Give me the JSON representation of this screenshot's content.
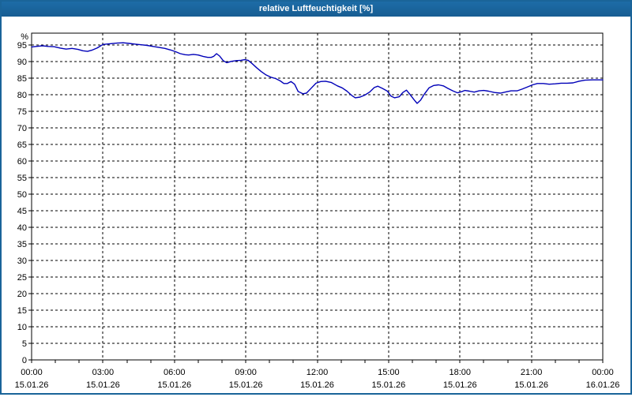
{
  "window": {
    "title": "relative Luftfeuchtigkeit [%]"
  },
  "colors": {
    "titlebar": "#1A6499",
    "window_border": "#1A6499",
    "plot_background": "#FFFFFF",
    "plot_border": "#000000",
    "grid": "#000000",
    "axis_text": "#000000",
    "title_text": "#FFFFFF",
    "series_line": "#0000B8"
  },
  "chart_data": {
    "type": "line",
    "title": "relative Luftfeuchtigkeit [%]",
    "xlabel": "",
    "ylabel": "%",
    "ylim": [
      0,
      98.6
    ],
    "yticks": [
      0,
      5,
      10,
      15,
      20,
      25,
      30,
      35,
      40,
      45,
      50,
      55,
      60,
      65,
      70,
      75,
      80,
      85,
      90,
      95
    ],
    "x_range_hours": [
      0,
      24
    ],
    "minor_x_tick_every_hours": 1,
    "grid": "dashed",
    "grid_x_hours": [
      3,
      6,
      9,
      12,
      15,
      18,
      21
    ],
    "xticks": [
      {
        "hour": 0,
        "time": "00:00",
        "date": "15.01.26"
      },
      {
        "hour": 3,
        "time": "03:00",
        "date": "15.01.26"
      },
      {
        "hour": 6,
        "time": "06:00",
        "date": "15.01.26"
      },
      {
        "hour": 9,
        "time": "09:00",
        "date": "15.01.26"
      },
      {
        "hour": 12,
        "time": "12:00",
        "date": "15.01.26"
      },
      {
        "hour": 15,
        "time": "15:00",
        "date": "15.01.26"
      },
      {
        "hour": 18,
        "time": "18:00",
        "date": "15.01.26"
      },
      {
        "hour": 21,
        "time": "21:00",
        "date": "15.01.26"
      },
      {
        "hour": 24,
        "time": "00:00",
        "date": "16.01.26"
      }
    ],
    "series": [
      {
        "name": "relative Luftfeuchtigkeit",
        "unit": "%",
        "color": "#0000B8",
        "points": [
          [
            0.0,
            94.4
          ],
          [
            0.2,
            94.6
          ],
          [
            0.45,
            94.8
          ],
          [
            0.7,
            94.6
          ],
          [
            0.95,
            94.5
          ],
          [
            1.2,
            94.1
          ],
          [
            1.45,
            93.8
          ],
          [
            1.7,
            94.0
          ],
          [
            1.95,
            93.7
          ],
          [
            2.15,
            93.3
          ],
          [
            2.35,
            93.1
          ],
          [
            2.55,
            93.5
          ],
          [
            2.75,
            94.1
          ],
          [
            3.0,
            95.2
          ],
          [
            3.3,
            95.4
          ],
          [
            3.6,
            95.6
          ],
          [
            3.85,
            95.7
          ],
          [
            4.1,
            95.5
          ],
          [
            4.35,
            95.3
          ],
          [
            4.6,
            95.1
          ],
          [
            4.85,
            94.9
          ],
          [
            5.1,
            94.6
          ],
          [
            5.35,
            94.3
          ],
          [
            5.6,
            94.0
          ],
          [
            5.85,
            93.5
          ],
          [
            6.05,
            93.0
          ],
          [
            6.25,
            92.4
          ],
          [
            6.45,
            92.1
          ],
          [
            6.6,
            92.0
          ],
          [
            6.8,
            92.2
          ],
          [
            7.0,
            92.0
          ],
          [
            7.2,
            91.6
          ],
          [
            7.4,
            91.3
          ],
          [
            7.55,
            91.3
          ],
          [
            7.65,
            91.6
          ],
          [
            7.77,
            92.4
          ],
          [
            7.9,
            91.7
          ],
          [
            8.05,
            90.3
          ],
          [
            8.2,
            89.7
          ],
          [
            8.4,
            90.1
          ],
          [
            8.6,
            90.3
          ],
          [
            8.8,
            90.4
          ],
          [
            8.95,
            90.6
          ],
          [
            9.1,
            90.4
          ],
          [
            9.25,
            89.5
          ],
          [
            9.45,
            88.2
          ],
          [
            9.65,
            87.0
          ],
          [
            9.85,
            86.0
          ],
          [
            10.05,
            85.3
          ],
          [
            10.25,
            84.9
          ],
          [
            10.45,
            84.2
          ],
          [
            10.6,
            83.4
          ],
          [
            10.75,
            83.4
          ],
          [
            10.9,
            84.0
          ],
          [
            11.05,
            83.2
          ],
          [
            11.2,
            81.0
          ],
          [
            11.4,
            80.3
          ],
          [
            11.55,
            80.5
          ],
          [
            11.75,
            82.0
          ],
          [
            11.95,
            83.5
          ],
          [
            12.15,
            84.0
          ],
          [
            12.35,
            84.1
          ],
          [
            12.6,
            83.7
          ],
          [
            12.85,
            82.7
          ],
          [
            13.05,
            82.1
          ],
          [
            13.25,
            81.1
          ],
          [
            13.45,
            79.8
          ],
          [
            13.6,
            79.1
          ],
          [
            13.8,
            79.3
          ],
          [
            14.0,
            79.9
          ],
          [
            14.2,
            80.8
          ],
          [
            14.4,
            82.2
          ],
          [
            14.55,
            82.6
          ],
          [
            14.75,
            81.9
          ],
          [
            14.95,
            81.1
          ],
          [
            15.1,
            79.6
          ],
          [
            15.25,
            79.1
          ],
          [
            15.45,
            79.4
          ],
          [
            15.6,
            80.7
          ],
          [
            15.75,
            81.4
          ],
          [
            15.9,
            80.1
          ],
          [
            16.05,
            78.7
          ],
          [
            16.2,
            77.4
          ],
          [
            16.35,
            78.4
          ],
          [
            16.5,
            80.2
          ],
          [
            16.7,
            82.1
          ],
          [
            16.9,
            82.8
          ],
          [
            17.1,
            83.0
          ],
          [
            17.3,
            82.7
          ],
          [
            17.5,
            81.9
          ],
          [
            17.7,
            81.2
          ],
          [
            17.9,
            80.6
          ],
          [
            18.05,
            80.9
          ],
          [
            18.2,
            81.3
          ],
          [
            18.4,
            81.1
          ],
          [
            18.6,
            80.8
          ],
          [
            18.8,
            81.2
          ],
          [
            19.0,
            81.3
          ],
          [
            19.2,
            81.1
          ],
          [
            19.45,
            80.7
          ],
          [
            19.7,
            80.5
          ],
          [
            19.95,
            80.9
          ],
          [
            20.15,
            81.2
          ],
          [
            20.4,
            81.2
          ],
          [
            20.6,
            81.7
          ],
          [
            20.85,
            82.4
          ],
          [
            21.05,
            83.0
          ],
          [
            21.25,
            83.4
          ],
          [
            21.5,
            83.4
          ],
          [
            21.75,
            83.2
          ],
          [
            22.0,
            83.3
          ],
          [
            22.25,
            83.5
          ],
          [
            22.5,
            83.5
          ],
          [
            22.75,
            83.6
          ],
          [
            23.0,
            84.1
          ],
          [
            23.25,
            84.4
          ],
          [
            23.55,
            84.5
          ],
          [
            23.8,
            84.5
          ],
          [
            24.0,
            84.5
          ]
        ]
      }
    ]
  }
}
